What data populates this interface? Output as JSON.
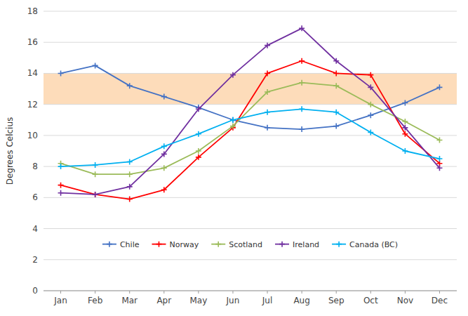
{
  "chart_data": {
    "type": "line",
    "y_label": "Degrees Celcius",
    "categories": [
      "Jan",
      "Feb",
      "Mar",
      "Apr",
      "May",
      "Jun",
      "Jul",
      "Aug",
      "Sep",
      "Oct",
      "Nov",
      "Dec"
    ],
    "series": [
      {
        "name": "Chile",
        "color": "#4472C4",
        "marker": "plus",
        "values": [
          14.0,
          14.5,
          13.2,
          12.5,
          11.8,
          11.0,
          10.5,
          10.4,
          10.6,
          11.3,
          12.1,
          13.1
        ]
      },
      {
        "name": "Norway",
        "color": "#FF0000",
        "marker": "plus",
        "values": [
          6.8,
          6.2,
          5.9,
          6.5,
          8.6,
          10.5,
          14.0,
          14.8,
          14.0,
          13.9,
          10.1,
          8.2
        ]
      },
      {
        "name": "Scotland",
        "color": "#9BBB59",
        "marker": "plus",
        "values": [
          8.2,
          7.5,
          7.5,
          7.9,
          9.0,
          10.6,
          12.8,
          13.4,
          13.2,
          12.0,
          10.9,
          9.7
        ]
      },
      {
        "name": "Ireland",
        "color": "#7030A0",
        "marker": "plus",
        "values": [
          6.3,
          6.2,
          6.7,
          8.8,
          11.7,
          13.9,
          15.8,
          16.9,
          14.8,
          13.1,
          10.5,
          7.9
        ]
      },
      {
        "name": "Canada (BC)",
        "color": "#00B0F0",
        "marker": "plus",
        "values": [
          8.0,
          8.1,
          8.3,
          9.3,
          10.1,
          11.0,
          11.5,
          11.7,
          11.5,
          10.2,
          9.0,
          8.5
        ]
      }
    ],
    "band": {
      "ymin": 12.0,
      "ymax": 14.0,
      "color": "#FDDCBA"
    },
    "ylim": [
      0,
      18
    ],
    "yticks": [
      0,
      2,
      4,
      6,
      8,
      10,
      12,
      14,
      16,
      18
    ],
    "grid": true,
    "legend": "bottom"
  }
}
